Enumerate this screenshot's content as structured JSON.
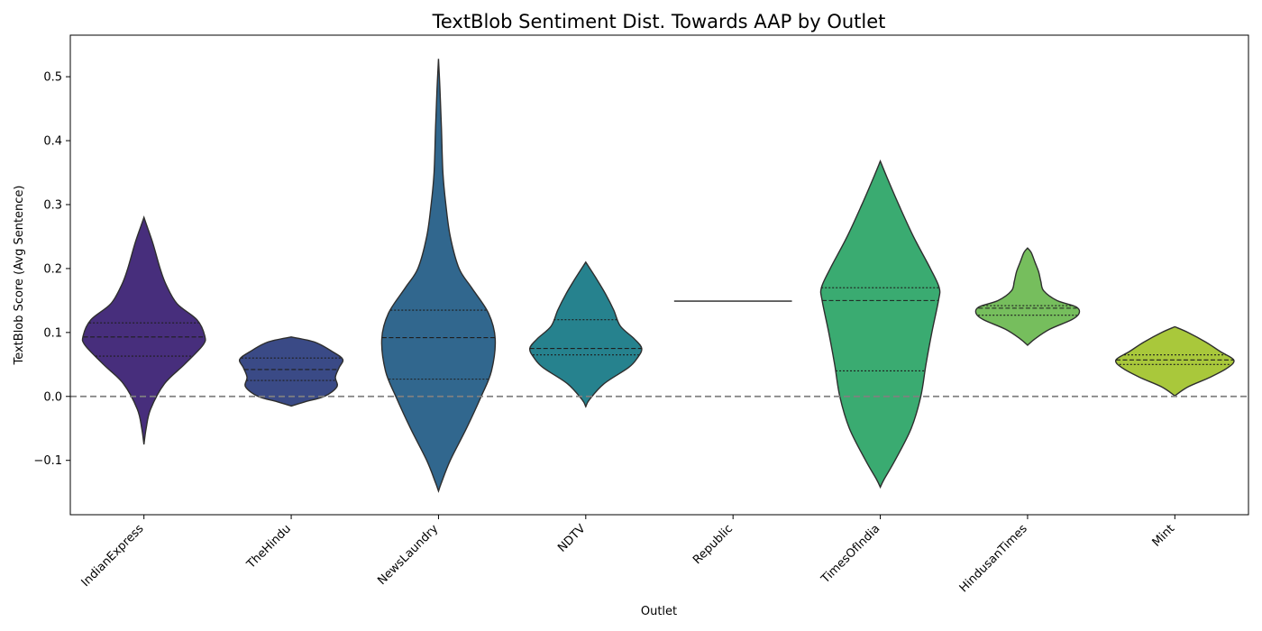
{
  "chart_data": {
    "type": "violin",
    "title": "TextBlob Sentiment Dist. Towards AAP by Outlet",
    "xlabel": "Outlet",
    "ylabel": "TextBlob Score (Avg Sentence)",
    "ylim": [
      -0.185,
      0.565
    ],
    "yticks": [
      -0.1,
      0.0,
      0.1,
      0.2,
      0.3,
      0.4,
      0.5
    ],
    "ytick_labels": [
      "−0.1",
      "0.0",
      "0.1",
      "0.2",
      "0.3",
      "0.4",
      "0.5"
    ],
    "reference_line": {
      "y": 0.0,
      "style": "dashed",
      "color": "#808080"
    },
    "categories": [
      "IndianExpress",
      "TheHindu",
      "NewsLaundry",
      "NDTV",
      "Republic",
      "TimesOfIndia",
      "HindusanTimes",
      "Mint"
    ],
    "colors": [
      "#472e7c",
      "#3a4a86",
      "#31678e",
      "#26828e",
      "#22a284",
      "#3aab71",
      "#76be5d",
      "#a9c83b"
    ],
    "violins": [
      {
        "name": "IndianExpress",
        "min": -0.075,
        "max": 0.28,
        "q1": 0.063,
        "median": 0.093,
        "q3": 0.115,
        "profile": [
          [
            -0.075,
            0.0
          ],
          [
            -0.05,
            0.03
          ],
          [
            -0.02,
            0.09
          ],
          [
            0.02,
            0.28
          ],
          [
            0.05,
            0.55
          ],
          [
            0.08,
            0.8
          ],
          [
            0.095,
            0.825
          ],
          [
            0.12,
            0.72
          ],
          [
            0.145,
            0.45
          ],
          [
            0.175,
            0.3
          ],
          [
            0.2,
            0.22
          ],
          [
            0.24,
            0.12
          ],
          [
            0.27,
            0.03
          ],
          [
            0.28,
            0.0
          ]
        ]
      },
      {
        "name": "TheHindu",
        "min": -0.015,
        "max": 0.093,
        "q1": 0.025,
        "median": 0.042,
        "q3": 0.06,
        "profile": [
          [
            -0.015,
            0.0
          ],
          [
            -0.008,
            0.2
          ],
          [
            0.0,
            0.45
          ],
          [
            0.015,
            0.62
          ],
          [
            0.03,
            0.6
          ],
          [
            0.045,
            0.65
          ],
          [
            0.058,
            0.7
          ],
          [
            0.07,
            0.56
          ],
          [
            0.085,
            0.32
          ],
          [
            0.093,
            0.0
          ]
        ]
      },
      {
        "name": "NewsLaundry",
        "min": -0.148,
        "max": 0.528,
        "q1": 0.027,
        "median": 0.092,
        "q3": 0.135,
        "profile": [
          [
            -0.148,
            0.0
          ],
          [
            -0.135,
            0.04
          ],
          [
            -0.1,
            0.16
          ],
          [
            -0.05,
            0.38
          ],
          [
            0.0,
            0.58
          ],
          [
            0.04,
            0.72
          ],
          [
            0.09,
            0.77
          ],
          [
            0.13,
            0.68
          ],
          [
            0.17,
            0.45
          ],
          [
            0.2,
            0.28
          ],
          [
            0.25,
            0.16
          ],
          [
            0.3,
            0.1
          ],
          [
            0.35,
            0.06
          ],
          [
            0.42,
            0.04
          ],
          [
            0.48,
            0.02
          ],
          [
            0.528,
            0.0
          ]
        ]
      },
      {
        "name": "NDTV",
        "min": -0.016,
        "max": 0.21,
        "q1": 0.065,
        "median": 0.075,
        "q3": 0.12,
        "profile": [
          [
            -0.016,
            0.0
          ],
          [
            -0.005,
            0.05
          ],
          [
            0.02,
            0.25
          ],
          [
            0.045,
            0.58
          ],
          [
            0.06,
            0.7
          ],
          [
            0.075,
            0.76
          ],
          [
            0.09,
            0.66
          ],
          [
            0.11,
            0.47
          ],
          [
            0.135,
            0.38
          ],
          [
            0.16,
            0.27
          ],
          [
            0.185,
            0.14
          ],
          [
            0.21,
            0.0
          ]
        ]
      },
      {
        "name": "Republic",
        "min": 0.149,
        "max": 0.149,
        "q1": 0.149,
        "median": 0.149,
        "q3": 0.149,
        "profile": []
      },
      {
        "name": "TimesOfIndia",
        "min": -0.142,
        "max": 0.368,
        "q1": 0.04,
        "median": 0.15,
        "q3": 0.17,
        "profile": [
          [
            -0.142,
            0.0
          ],
          [
            -0.13,
            0.05
          ],
          [
            -0.1,
            0.2
          ],
          [
            -0.05,
            0.42
          ],
          [
            0.0,
            0.55
          ],
          [
            0.05,
            0.62
          ],
          [
            0.1,
            0.7
          ],
          [
            0.15,
            0.79
          ],
          [
            0.17,
            0.8
          ],
          [
            0.2,
            0.68
          ],
          [
            0.25,
            0.45
          ],
          [
            0.3,
            0.25
          ],
          [
            0.34,
            0.1
          ],
          [
            0.368,
            0.0
          ]
        ]
      },
      {
        "name": "HindusanTimes",
        "min": 0.08,
        "max": 0.232,
        "q1": 0.127,
        "median": 0.138,
        "q3": 0.142,
        "profile": [
          [
            0.08,
            0.0
          ],
          [
            0.09,
            0.1
          ],
          [
            0.105,
            0.3
          ],
          [
            0.12,
            0.6
          ],
          [
            0.13,
            0.7
          ],
          [
            0.14,
            0.66
          ],
          [
            0.15,
            0.4
          ],
          [
            0.165,
            0.22
          ],
          [
            0.18,
            0.18
          ],
          [
            0.195,
            0.15
          ],
          [
            0.21,
            0.1
          ],
          [
            0.225,
            0.05
          ],
          [
            0.232,
            0.0
          ]
        ]
      },
      {
        "name": "Mint",
        "min": 0.001,
        "max": 0.109,
        "q1": 0.05,
        "median": 0.057,
        "q3": 0.065,
        "profile": [
          [
            0.001,
            0.0
          ],
          [
            0.015,
            0.18
          ],
          [
            0.03,
            0.48
          ],
          [
            0.045,
            0.72
          ],
          [
            0.057,
            0.8
          ],
          [
            0.07,
            0.62
          ],
          [
            0.085,
            0.42
          ],
          [
            0.1,
            0.18
          ],
          [
            0.109,
            0.0
          ]
        ]
      }
    ]
  }
}
